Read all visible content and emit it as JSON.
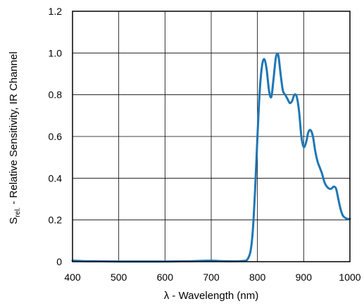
{
  "chart_data": {
    "type": "line",
    "title": "",
    "xlabel": "λ - Wavelength (nm)",
    "ylabel_main": "S",
    "ylabel_sub": "rel.",
    "ylabel_rest": " - Relative Sensitivity, IR Channel",
    "xlim": [
      400,
      1000
    ],
    "ylim": [
      0,
      1.2
    ],
    "x_ticks": [
      "400",
      "500",
      "600",
      "700",
      "800",
      "900",
      "1000"
    ],
    "y_ticks": [
      "0",
      "0.2",
      "0.4",
      "0.6",
      "0.8",
      "1.0",
      "1.2"
    ],
    "grid": true,
    "series": [
      {
        "color": "#1f77b4",
        "x": [
          400,
          420,
          450,
          500,
          550,
          600,
          650,
          680,
          700,
          720,
          750,
          770,
          778,
          785,
          790,
          795,
          800,
          805,
          810,
          815,
          820,
          825,
          830,
          835,
          840,
          845,
          850,
          855,
          860,
          865,
          870,
          875,
          880,
          885,
          890,
          895,
          900,
          905,
          910,
          915,
          920,
          925,
          930,
          935,
          940,
          945,
          950,
          955,
          960,
          965,
          970,
          975,
          980,
          985,
          990,
          995,
          1000
        ],
        "y": [
          0.005,
          0.003,
          0.002,
          0.001,
          0.001,
          0.001,
          0.002,
          0.004,
          0.005,
          0.003,
          0.002,
          0.004,
          0.01,
          0.05,
          0.15,
          0.35,
          0.6,
          0.82,
          0.94,
          0.97,
          0.92,
          0.82,
          0.79,
          0.88,
          0.98,
          0.99,
          0.9,
          0.82,
          0.8,
          0.78,
          0.76,
          0.77,
          0.8,
          0.79,
          0.72,
          0.6,
          0.55,
          0.57,
          0.62,
          0.63,
          0.6,
          0.53,
          0.48,
          0.45,
          0.42,
          0.38,
          0.36,
          0.35,
          0.35,
          0.36,
          0.35,
          0.3,
          0.25,
          0.22,
          0.21,
          0.205,
          0.205
        ]
      }
    ]
  }
}
